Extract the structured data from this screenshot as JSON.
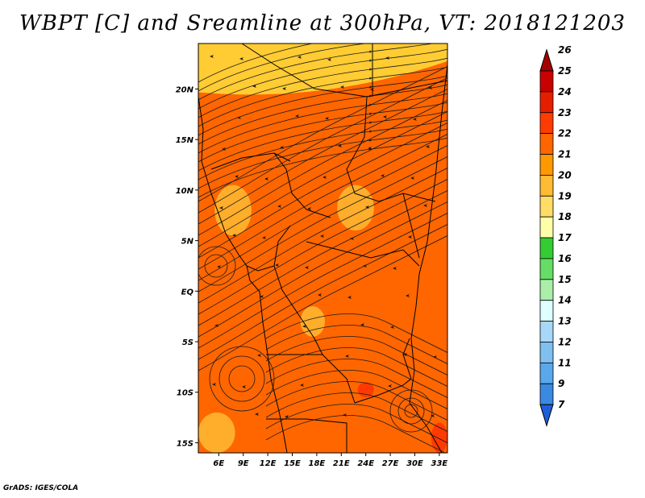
{
  "title": "WBPT [C] and Sreamline at 300hPa, VT: 2018121203",
  "footer": "GrADS: IGES/COLA",
  "map": {
    "lat_labels": [
      "20N",
      "15N",
      "10N",
      "5N",
      "EQ",
      "5S",
      "10S",
      "15S"
    ],
    "lat_values": [
      20,
      15,
      10,
      5,
      0,
      -5,
      -10,
      -15
    ],
    "lon_labels": [
      "6E",
      "9E",
      "12E",
      "15E",
      "18E",
      "21E",
      "24E",
      "27E",
      "30E",
      "33E"
    ],
    "lon_values": [
      6,
      9,
      12,
      15,
      18,
      21,
      24,
      27,
      30,
      33
    ],
    "lon_range": [
      3.5,
      34
    ],
    "lat_range": [
      -16,
      24.5
    ],
    "background_color": "#ff6600",
    "features": [
      {
        "name": "yellow-band-north",
        "lon": [
          3.5,
          34
        ],
        "lat": [
          20,
          24.5
        ],
        "color": "#ffcc33"
      },
      {
        "name": "yellow-patch-nigeria",
        "lon": [
          5.5,
          10
        ],
        "lat": [
          5.5,
          10.5
        ],
        "color": "#ffbb33"
      },
      {
        "name": "yellow-patch-car",
        "lon": [
          20.5,
          25
        ],
        "lat": [
          6,
          10.5
        ],
        "color": "#ffbb33"
      },
      {
        "name": "yellow-patch-congo",
        "lon": [
          16,
          19
        ],
        "lat": [
          -4.5,
          -1.5
        ],
        "color": "#ffbb33"
      },
      {
        "name": "yellow-patch-angola-sw",
        "lon": [
          3.5,
          8
        ],
        "lat": [
          -16,
          -12
        ],
        "color": "#ffbb33"
      },
      {
        "name": "red-patch-mozambique",
        "lon": [
          32,
          34
        ],
        "lat": [
          -16,
          -13
        ],
        "color": "#ff3300"
      },
      {
        "name": "red-patch-zambia",
        "lon": [
          23,
          25
        ],
        "lat": [
          -10.5,
          -9
        ],
        "color": "#ff3300"
      }
    ]
  },
  "colorbar": {
    "labels": [
      "26",
      "25",
      "24",
      "23",
      "22",
      "21",
      "20",
      "19",
      "18",
      "17",
      "16",
      "15",
      "14",
      "13",
      "12",
      "11",
      "9",
      "7"
    ],
    "colors": [
      "#a50000",
      "#c80000",
      "#e61e00",
      "#ff3c00",
      "#ff6600",
      "#ff9900",
      "#ffbb33",
      "#ffdd66",
      "#ffffaa",
      "#33cc33",
      "#66dd66",
      "#aaeeaa",
      "#e0ffff",
      "#a8d8f8",
      "#80c0f0",
      "#5aa8ec",
      "#3a8ae0",
      "#1e5ed8"
    ]
  }
}
